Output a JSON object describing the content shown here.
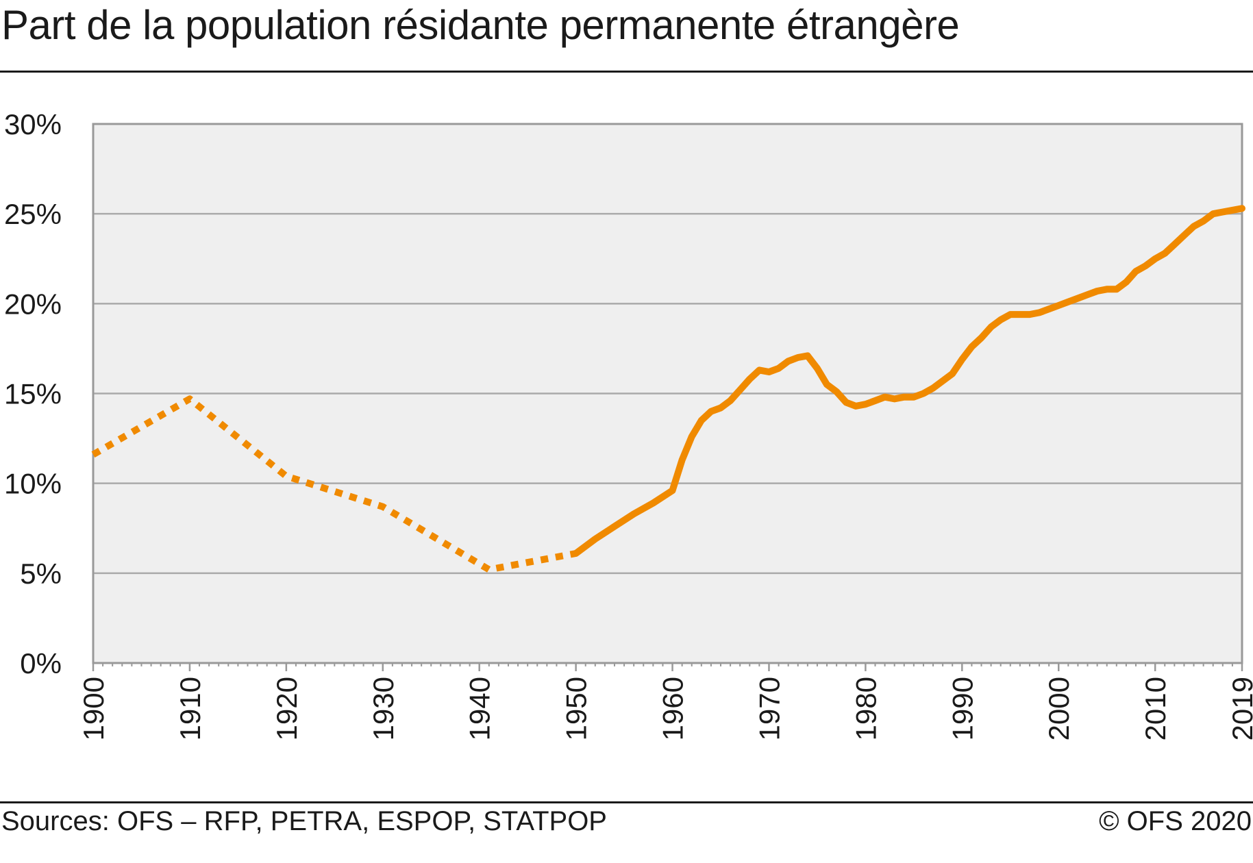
{
  "header": {
    "title": "Part de la population résidante permanente étrangère"
  },
  "footer": {
    "source": "Sources: OFS – RFP, PETRA, ESPOP, STATPOP",
    "copyright": "© OFS 2020"
  },
  "colors": {
    "series": "#f08a00",
    "plot_background": "#efefef",
    "gridline": "#aaaaaa",
    "frame": "#999999",
    "text": "#1a1a1a"
  },
  "chart_data": {
    "type": "line",
    "title": "Part de la population résidante permanente étrangère",
    "xlabel": "",
    "ylabel": "",
    "xlim": [
      1900,
      2019
    ],
    "ylim": [
      0,
      30
    ],
    "grid": true,
    "legend": "none",
    "x_ticks": [
      1900,
      1910,
      1920,
      1930,
      1940,
      1950,
      1960,
      1970,
      1980,
      1990,
      2000,
      2010,
      2019
    ],
    "x_tick_labels": [
      "1900",
      "1910",
      "1920",
      "1930",
      "1940",
      "1950",
      "1960",
      "1970",
      "1980",
      "1990",
      "2000",
      "2010",
      "2019"
    ],
    "y_ticks": [
      0,
      5,
      10,
      15,
      20,
      25,
      30
    ],
    "y_tick_labels": [
      "0%",
      "5%",
      "10%",
      "15%",
      "20%",
      "25%",
      "30%"
    ],
    "series": [
      {
        "style": "dotted",
        "x": [
          1900,
          1910,
          1920,
          1930,
          1941,
          1950
        ],
        "y": [
          11.6,
          14.7,
          10.4,
          8.7,
          5.2,
          6.1
        ]
      },
      {
        "style": "solid",
        "x": [
          1950,
          1952,
          1954,
          1956,
          1958,
          1960,
          1961,
          1962,
          1963,
          1964,
          1965,
          1966,
          1967,
          1968,
          1969,
          1970,
          1971,
          1972,
          1973,
          1974,
          1975,
          1976,
          1977,
          1978,
          1979,
          1980,
          1981,
          1982,
          1983,
          1984,
          1985,
          1986,
          1987,
          1988,
          1989,
          1990,
          1991,
          1992,
          1993,
          1994,
          1995,
          1996,
          1997,
          1998,
          1999,
          2000,
          2001,
          2002,
          2003,
          2004,
          2005,
          2006,
          2007,
          2008,
          2009,
          2010,
          2011,
          2012,
          2013,
          2014,
          2015,
          2016,
          2017,
          2018,
          2019
        ],
        "y": [
          6.1,
          6.9,
          7.6,
          8.3,
          8.9,
          9.6,
          11.3,
          12.6,
          13.5,
          14.0,
          14.2,
          14.6,
          15.2,
          15.8,
          16.3,
          16.2,
          16.4,
          16.8,
          17.0,
          17.1,
          16.4,
          15.5,
          15.1,
          14.5,
          14.3,
          14.4,
          14.6,
          14.8,
          14.7,
          14.8,
          14.8,
          15.0,
          15.3,
          15.7,
          16.1,
          16.9,
          17.6,
          18.1,
          18.7,
          19.1,
          19.4,
          19.4,
          19.4,
          19.5,
          19.7,
          19.9,
          20.1,
          20.3,
          20.5,
          20.7,
          20.8,
          20.8,
          21.2,
          21.8,
          22.1,
          22.5,
          22.8,
          23.3,
          23.8,
          24.3,
          24.6,
          25.0,
          25.1,
          25.2,
          25.3
        ]
      }
    ]
  }
}
